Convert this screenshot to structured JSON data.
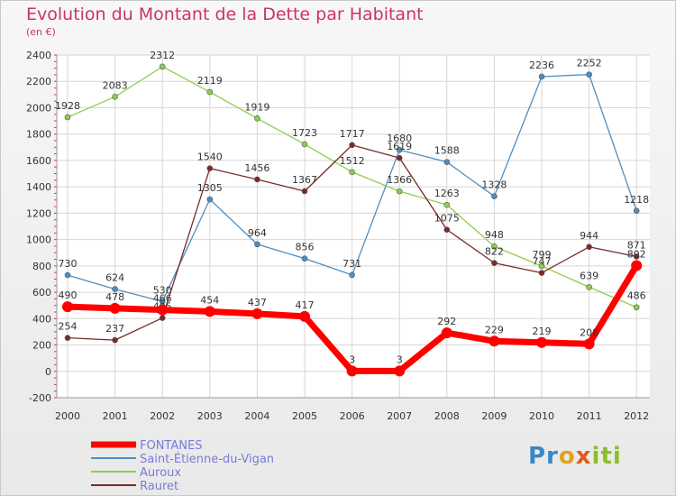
{
  "title": "Evolution du Montant de la Dette par Habitant",
  "subtitle": "(en €)",
  "logo": {
    "part1": "Pr",
    "part2": "o",
    "part3": "x",
    "part4": "iti"
  },
  "chart_data": {
    "type": "line",
    "x": [
      "2000",
      "2001",
      "2002",
      "2003",
      "2004",
      "2005",
      "2006",
      "2007",
      "2008",
      "2009",
      "2010",
      "2011",
      "2012"
    ],
    "ylim": [
      -200,
      2400
    ],
    "yticks": [
      -200,
      0,
      200,
      400,
      600,
      800,
      1000,
      1200,
      1400,
      1600,
      1800,
      2000,
      2200,
      2400
    ],
    "grid": true,
    "legend_position": "bottom-left",
    "series": [
      {
        "name": "FONTANES",
        "color": "#ff0000",
        "values": [
          490,
          478,
          466,
          454,
          437,
          417,
          3,
          3,
          292,
          229,
          219,
          208,
          802
        ]
      },
      {
        "name": "Saint-Étienne-du-Vigan",
        "color": "#4d8fc4",
        "values": [
          730,
          624,
          530,
          1305,
          964,
          856,
          731,
          1680,
          1588,
          1328,
          2236,
          2252,
          1218
        ]
      },
      {
        "name": "Auroux",
        "color": "#8ccf4d",
        "values": [
          1928,
          2083,
          2312,
          2119,
          1919,
          1723,
          1512,
          1366,
          1263,
          948,
          799,
          639,
          486
        ]
      },
      {
        "name": "Rauret",
        "color": "#7a2a2a",
        "values": [
          254,
          237,
          405,
          1540,
          1456,
          1367,
          1717,
          1619,
          1075,
          822,
          747,
          944,
          871
        ]
      }
    ]
  }
}
